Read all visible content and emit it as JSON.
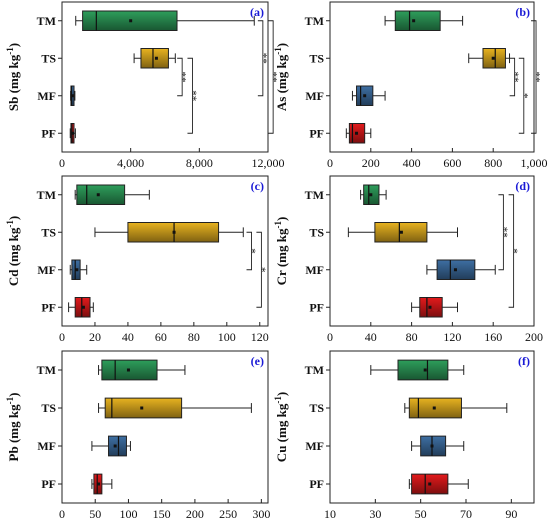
{
  "chart_data": [
    {
      "type": "boxplot",
      "tag": "(a)",
      "ylabel_main": "Sb",
      "ylabel_unit": "(mg kg",
      "ylabel_sup": "-1",
      "ylabel_close": ")",
      "categories": [
        "TM",
        "TS",
        "MF",
        "PF"
      ],
      "xlim": [
        0,
        12000
      ],
      "xticks": [
        0,
        4000,
        8000,
        12000
      ],
      "xtick_labels": [
        "0",
        "4,000",
        "8,000",
        "12,000"
      ],
      "colors": [
        "#2e9e5b",
        "#e8b320",
        "#3e6fa3",
        "#e31a1c"
      ],
      "boxes": [
        {
          "min": 800,
          "q1": 1200,
          "median": 2000,
          "mean": 4000,
          "q3": 6700,
          "max": 11200
        },
        {
          "min": 4200,
          "q1": 4600,
          "median": 5300,
          "mean": 5500,
          "q3": 6200,
          "max": 6600
        },
        {
          "min": 500,
          "q1": 520,
          "median": 560,
          "mean": 600,
          "q3": 700,
          "max": 750
        },
        {
          "min": 480,
          "q1": 520,
          "median": 580,
          "mean": 620,
          "q3": 700,
          "max": 780
        }
      ],
      "brackets": [
        {
          "from": 1,
          "to": 2,
          "x": 7000,
          "label": "**"
        },
        {
          "from": 1,
          "to": 3,
          "x": 7600,
          "label": "**"
        },
        {
          "from": 0,
          "to": 2,
          "x": 11700,
          "label": "**"
        },
        {
          "from": 0,
          "to": 3,
          "x": 12300,
          "label": "**"
        }
      ]
    },
    {
      "type": "boxplot",
      "tag": "(b)",
      "ylabel_main": "As",
      "ylabel_unit": "(mg kg",
      "ylabel_sup": "-1",
      "ylabel_close": ")",
      "categories": [
        "TM",
        "TS",
        "MF",
        "PF"
      ],
      "xlim": [
        0,
        1000
      ],
      "xticks": [
        0,
        200,
        400,
        600,
        800,
        1000
      ],
      "xtick_labels": [
        "0",
        "200",
        "400",
        "600",
        "800",
        "1,000"
      ],
      "colors": [
        "#2e9e5b",
        "#e8b320",
        "#3e6fa3",
        "#e31a1c"
      ],
      "boxes": [
        {
          "min": 270,
          "q1": 320,
          "median": 390,
          "mean": 410,
          "q3": 540,
          "max": 650
        },
        {
          "min": 680,
          "q1": 750,
          "median": 810,
          "mean": 800,
          "q3": 860,
          "max": 880
        },
        {
          "min": 110,
          "q1": 130,
          "median": 150,
          "mean": 170,
          "q3": 210,
          "max": 270
        },
        {
          "min": 80,
          "q1": 95,
          "median": 110,
          "mean": 130,
          "q3": 170,
          "max": 200
        }
      ],
      "brackets": [
        {
          "from": 1,
          "to": 2,
          "x": 905,
          "label": "**"
        },
        {
          "from": 1,
          "to": 3,
          "x": 950,
          "label": "*"
        },
        {
          "from": 0,
          "to": 3,
          "x": 1010,
          "label": "**"
        }
      ]
    },
    {
      "type": "boxplot",
      "tag": "(c)",
      "ylabel_main": "Cd",
      "ylabel_unit": "(mg kg",
      "ylabel_sup": "-1",
      "ylabel_close": ")",
      "categories": [
        "TM",
        "TS",
        "MF",
        "PF"
      ],
      "xlim": [
        0,
        125
      ],
      "xticks": [
        0,
        20,
        40,
        60,
        80,
        100,
        120
      ],
      "xtick_labels": [
        "0",
        "20",
        "40",
        "60",
        "80",
        "100",
        "120"
      ],
      "colors": [
        "#2e9e5b",
        "#e8b320",
        "#3e6fa3",
        "#e31a1c"
      ],
      "boxes": [
        {
          "min": 8,
          "q1": 9,
          "median": 15,
          "mean": 22,
          "q3": 38,
          "max": 53
        },
        {
          "min": 20,
          "q1": 40,
          "median": 68,
          "mean": 68,
          "q3": 95,
          "max": 110
        },
        {
          "min": 5,
          "q1": 6,
          "median": 8,
          "mean": 9,
          "q3": 11,
          "max": 15
        },
        {
          "min": 4,
          "q1": 8,
          "median": 12,
          "mean": 13,
          "q3": 17,
          "max": 19
        }
      ],
      "brackets": [
        {
          "from": 1,
          "to": 2,
          "x": 115,
          "label": "*"
        },
        {
          "from": 1,
          "to": 3,
          "x": 121,
          "label": "*"
        }
      ]
    },
    {
      "type": "boxplot",
      "tag": "(d)",
      "ylabel_main": "Cr",
      "ylabel_unit": "(mg kg",
      "ylabel_sup": "-1",
      "ylabel_close": ")",
      "categories": [
        "TM",
        "TS",
        "MF",
        "PF"
      ],
      "xlim": [
        0,
        200
      ],
      "xticks": [
        0,
        40,
        80,
        120,
        160,
        200
      ],
      "xtick_labels": [
        "0",
        "40",
        "80",
        "120",
        "160",
        "200"
      ],
      "colors": [
        "#2e9e5b",
        "#e8b320",
        "#3e6fa3",
        "#e31a1c"
      ],
      "boxes": [
        {
          "min": 30,
          "q1": 33,
          "median": 38,
          "mean": 40,
          "q3": 48,
          "max": 55
        },
        {
          "min": 18,
          "q1": 44,
          "median": 68,
          "mean": 70,
          "q3": 95,
          "max": 125
        },
        {
          "min": 95,
          "q1": 105,
          "median": 118,
          "mean": 123,
          "q3": 142,
          "max": 162
        },
        {
          "min": 80,
          "q1": 88,
          "median": 95,
          "mean": 98,
          "q3": 110,
          "max": 125
        }
      ],
      "brackets": [
        {
          "from": 0,
          "to": 2,
          "x": 170,
          "label": "**"
        },
        {
          "from": 0,
          "to": 3,
          "x": 180,
          "label": "*"
        }
      ]
    },
    {
      "type": "boxplot",
      "tag": "(e)",
      "ylabel_main": "Pb",
      "ylabel_unit": "(mg kg",
      "ylabel_sup": "-1",
      "ylabel_close": ")",
      "categories": [
        "TM",
        "TS",
        "MF",
        "PF"
      ],
      "xlim": [
        0,
        310
      ],
      "xticks": [
        0,
        50,
        100,
        150,
        200,
        250,
        300
      ],
      "xtick_labels": [
        "0",
        "50",
        "100",
        "150",
        "200",
        "250",
        "300"
      ],
      "colors": [
        "#2e9e5b",
        "#e8b320",
        "#3e6fa3",
        "#e31a1c"
      ],
      "boxes": [
        {
          "min": 55,
          "q1": 60,
          "median": 80,
          "mean": 100,
          "q3": 143,
          "max": 185
        },
        {
          "min": 55,
          "q1": 65,
          "median": 75,
          "mean": 120,
          "q3": 180,
          "max": 285
        },
        {
          "min": 45,
          "q1": 70,
          "median": 85,
          "mean": 80,
          "q3": 97,
          "max": 103
        },
        {
          "min": 45,
          "q1": 48,
          "median": 53,
          "mean": 55,
          "q3": 60,
          "max": 75
        }
      ],
      "brackets": []
    },
    {
      "type": "boxplot",
      "tag": "(f)",
      "ylabel_main": "Cu",
      "ylabel_unit": "(mg kg",
      "ylabel_sup": "-1",
      "ylabel_close": ")",
      "categories": [
        "TM",
        "TS",
        "MF",
        "PF"
      ],
      "xlim": [
        10,
        100
      ],
      "xticks": [
        10,
        30,
        50,
        70,
        90
      ],
      "xtick_labels": [
        "10",
        "30",
        "50",
        "70",
        "90"
      ],
      "colors": [
        "#2e9e5b",
        "#e8b320",
        "#3e6fa3",
        "#e31a1c"
      ],
      "boxes": [
        {
          "min": 28,
          "q1": 40,
          "median": 53,
          "mean": 52,
          "q3": 62,
          "max": 69
        },
        {
          "min": 43,
          "q1": 45,
          "median": 49,
          "mean": 56,
          "q3": 68,
          "max": 88
        },
        {
          "min": 46,
          "q1": 50,
          "median": 55,
          "mean": 55,
          "q3": 61,
          "max": 69
        },
        {
          "min": 45,
          "q1": 46,
          "median": 52,
          "mean": 54,
          "q3": 62,
          "max": 71
        }
      ],
      "brackets": []
    }
  ]
}
